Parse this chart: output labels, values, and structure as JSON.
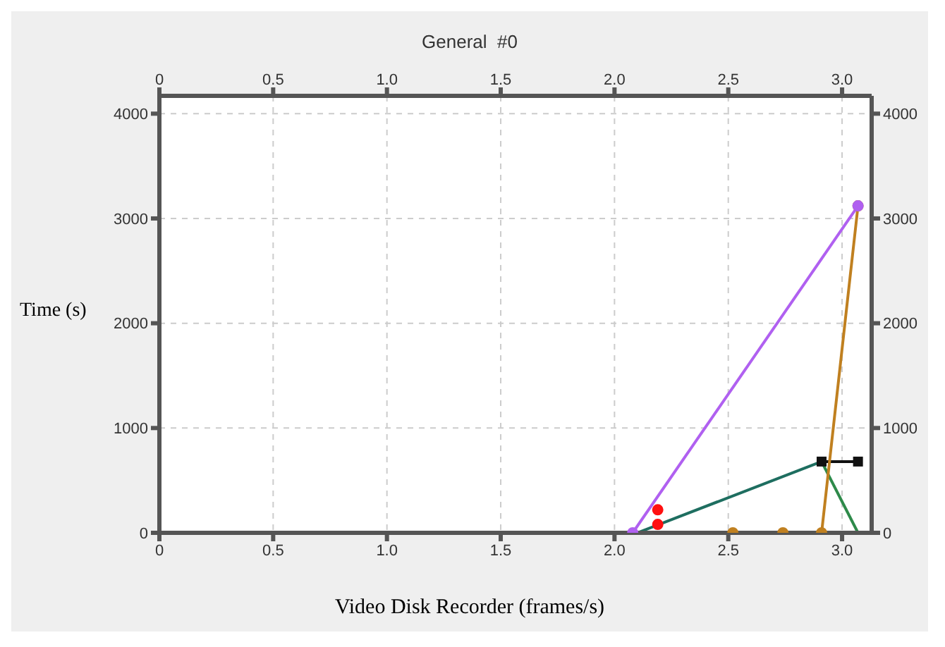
{
  "chart_data": {
    "type": "line",
    "title": "General  #0",
    "xlabel": "Video Disk Recorder (frames/s)",
    "ylabel": "Time (s)",
    "xlim": [
      0,
      3.13
    ],
    "xticks": [
      0,
      0.5,
      {
        "value": 1,
        "label": "1.0"
      },
      1.5,
      {
        "value": 2,
        "label": "2.0"
      },
      2.5,
      {
        "value": 3,
        "label": "3.0"
      }
    ],
    "x2lim": [
      0,
      3.13
    ],
    "x2ticks": [
      0,
      0.5,
      {
        "value": 1,
        "label": "1.0"
      },
      1.5,
      {
        "value": 2,
        "label": "2.0"
      },
      2.5,
      {
        "value": 3,
        "label": "3.0"
      }
    ],
    "ylim": [
      0,
      4170
    ],
    "yticks": [
      0,
      1000,
      2000,
      3000,
      4000
    ],
    "y2lim": [
      0,
      4170
    ],
    "y2ticks": [
      0,
      1000,
      2000,
      3000,
      4000
    ],
    "grid": true,
    "series": [
      {
        "type": "line",
        "color": "#1e6e60",
        "x": [
          2.1,
          2.91
        ],
        "values": [
          0,
          680
        ],
        "marker": "none"
      },
      {
        "type": "line",
        "color": "#2e8a4a",
        "x": [
          2.91,
          3.07
        ],
        "values": [
          680,
          0
        ],
        "marker": "none"
      },
      {
        "type": "line",
        "color": "#111111",
        "x": [
          2.91,
          3.07
        ],
        "values": [
          680,
          680
        ],
        "marker": "square"
      },
      {
        "type": "line",
        "color": "#c08020",
        "x": [
          2.52,
          2.74,
          2.91,
          3.07
        ],
        "values": [
          0,
          0,
          0,
          3120
        ],
        "marker": "circle"
      },
      {
        "type": "line",
        "color": "#b060f0",
        "x": [
          2.08,
          3.07
        ],
        "values": [
          0,
          3120
        ],
        "marker": "circle"
      },
      {
        "type": "scatter",
        "color": "#ff1010",
        "x": [
          2.19,
          2.19
        ],
        "values": [
          220,
          80
        ],
        "marker": "circle"
      }
    ]
  }
}
